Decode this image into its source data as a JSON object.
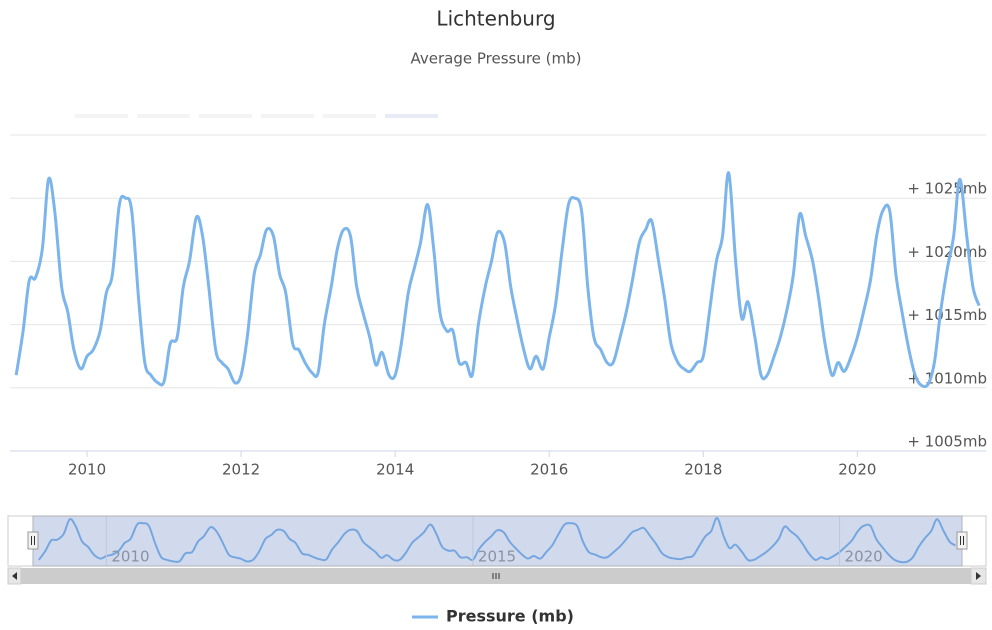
{
  "chart_data": {
    "type": "line",
    "title": "Lichtenburg",
    "subtitle": "Average Pressure (mb)",
    "x": [
      2009.08,
      2009.17,
      2009.25,
      2009.33,
      2009.42,
      2009.5,
      2009.58,
      2009.67,
      2009.75,
      2009.83,
      2009.92,
      2010.0,
      2010.08,
      2010.17,
      2010.25,
      2010.33,
      2010.42,
      2010.5,
      2010.58,
      2010.67,
      2010.75,
      2010.83,
      2010.92,
      2011.0,
      2011.08,
      2011.17,
      2011.25,
      2011.33,
      2011.42,
      2011.5,
      2011.58,
      2011.67,
      2011.75,
      2011.83,
      2011.92,
      2012.0,
      2012.08,
      2012.17,
      2012.25,
      2012.33,
      2012.42,
      2012.5,
      2012.58,
      2012.67,
      2012.75,
      2012.83,
      2012.92,
      2013.0,
      2013.08,
      2013.17,
      2013.25,
      2013.33,
      2013.42,
      2013.5,
      2013.58,
      2013.67,
      2013.75,
      2013.83,
      2013.92,
      2014.0,
      2014.08,
      2014.17,
      2014.25,
      2014.33,
      2014.42,
      2014.5,
      2014.58,
      2014.67,
      2014.75,
      2014.83,
      2014.92,
      2015.0,
      2015.08,
      2015.17,
      2015.25,
      2015.33,
      2015.42,
      2015.5,
      2015.58,
      2015.67,
      2015.75,
      2015.83,
      2015.92,
      2016.0,
      2016.08,
      2016.17,
      2016.25,
      2016.33,
      2016.42,
      2016.5,
      2016.58,
      2016.67,
      2016.75,
      2016.83,
      2016.92,
      2017.0,
      2017.08,
      2017.17,
      2017.25,
      2017.33,
      2017.42,
      2017.5,
      2017.58,
      2017.67,
      2017.75,
      2017.83,
      2017.92,
      2018.0,
      2018.08,
      2018.17,
      2018.25,
      2018.33,
      2018.42,
      2018.5,
      2018.58,
      2018.67,
      2018.75,
      2018.83,
      2018.92,
      2019.0,
      2019.08,
      2019.17,
      2019.25,
      2019.33,
      2019.42,
      2019.5,
      2019.58,
      2019.67,
      2019.75,
      2019.83,
      2019.92,
      2020.0,
      2020.08,
      2020.17,
      2020.25,
      2020.33,
      2020.42,
      2020.5,
      2020.58,
      2020.67,
      2020.75,
      2020.83,
      2020.92,
      2021.0,
      2021.08,
      2021.17,
      2021.25,
      2021.33,
      2021.42,
      2021.5,
      2021.58
    ],
    "series": [
      {
        "name": "Pressure (mb)",
        "color": "#7cb5ec",
        "values": [
          1011,
          1014.5,
          1018.5,
          1018.7,
          1021,
          1026.5,
          1024,
          1018,
          1016,
          1013,
          1011.5,
          1012.5,
          1013,
          1014.5,
          1017.5,
          1019,
          1024.5,
          1025,
          1024,
          1017,
          1012,
          1011,
          1010.4,
          1010.5,
          1013.5,
          1014,
          1018,
          1020,
          1023.5,
          1022,
          1018,
          1013,
          1012,
          1011.5,
          1010.4,
          1011,
          1014,
          1019,
          1020.5,
          1022.5,
          1022,
          1019,
          1017.5,
          1013.5,
          1013,
          1012,
          1011.2,
          1011.2,
          1015,
          1018,
          1021,
          1022.5,
          1022,
          1018,
          1016,
          1014,
          1011.8,
          1012.8,
          1011,
          1011,
          1013.5,
          1017.5,
          1019.5,
          1021.5,
          1024.5,
          1021,
          1016,
          1014.5,
          1014.5,
          1012,
          1012,
          1011,
          1015,
          1018,
          1020,
          1022.3,
          1021.5,
          1018,
          1015.5,
          1013,
          1011.5,
          1012.5,
          1011.5,
          1014,
          1016.5,
          1021,
          1024.5,
          1025,
          1024,
          1018,
          1014,
          1013,
          1012,
          1012,
          1014,
          1016,
          1018.5,
          1021.5,
          1022.5,
          1023.2,
          1020,
          1017,
          1013.5,
          1012,
          1011.5,
          1011.3,
          1012,
          1012.5,
          1016,
          1020,
          1022,
          1027,
          1020,
          1015.5,
          1016.8,
          1014,
          1011,
          1011,
          1012.5,
          1014,
          1016,
          1019,
          1023.7,
          1022,
          1020,
          1017,
          1013.5,
          1011,
          1012,
          1011.3,
          1012.5,
          1014,
          1016,
          1018.5,
          1022,
          1024,
          1024,
          1019,
          1016,
          1013,
          1011,
          1010.2,
          1010.3,
          1012,
          1016,
          1019.5,
          1022,
          1026.5,
          1022,
          1018,
          1016.5
        ]
      }
    ],
    "xlim": [
      2009,
      2021.67
    ],
    "xticks": [
      2010,
      2012,
      2014,
      2016,
      2018,
      2020
    ],
    "ylim": [
      1005,
      1030
    ],
    "yticks": [
      {
        "value": 1005,
        "label": "+ 1005mb"
      },
      {
        "value": 1010,
        "label": "+ 1010mb"
      },
      {
        "value": 1015,
        "label": "+ 1015mb"
      },
      {
        "value": 1020,
        "label": "+ 1020mb"
      },
      {
        "value": 1025,
        "label": "+ 1025mb"
      }
    ],
    "grid": true,
    "navigator_ticks": [
      2010,
      2015,
      2020
    ]
  }
}
